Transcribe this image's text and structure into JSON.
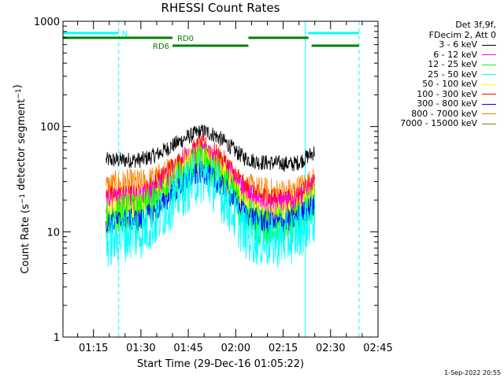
{
  "title": "RHESSI Count Rates",
  "legend": {
    "header": [
      "Det 3f,9f,",
      "FDecim 2, Att 0"
    ],
    "entries": [
      {
        "label": "3 - 6 keV",
        "color": "#000000"
      },
      {
        "label": "6 - 12 keV",
        "color": "#ff00ff"
      },
      {
        "label": "12 - 25 keV",
        "color": "#00ff00"
      },
      {
        "label": "25 - 50 keV",
        "color": "#00ffff"
      },
      {
        "label": "50 - 100 keV",
        "color": "#ffff00"
      },
      {
        "label": "100 - 300 keV",
        "color": "#ff0000"
      },
      {
        "label": "300 - 800 keV",
        "color": "#0000ff"
      },
      {
        "label": "800 - 7000 keV",
        "color": "#ff8000"
      },
      {
        "label": "7000 - 15000 keV",
        "color": "#808000"
      }
    ]
  },
  "footer": "1-Sep-2022 20:55",
  "chart_data": {
    "type": "line",
    "title": "RHESSI Count Rates",
    "xlabel": "Start Time (29-Dec-16 01:05:22)",
    "ylabel": "Count Rate (s⁻¹ detector segment⁻¹)",
    "x_axis": {
      "start": "01:05:22",
      "end": "02:45",
      "ticks": [
        "01:15",
        "01:30",
        "01:45",
        "02:00",
        "02:15",
        "02:30",
        "02:45"
      ]
    },
    "y_axis": {
      "scale": "log",
      "ylim": [
        1,
        1000
      ],
      "ticks": [
        "1",
        "10",
        "100",
        "1000"
      ]
    },
    "data_start": "01:19",
    "data_end": "02:25",
    "series": [
      {
        "name": "3 - 6 keV",
        "color": "#000000",
        "noise": 0.035,
        "points": [
          [
            "01:19",
            48
          ],
          [
            "01:25",
            48
          ],
          [
            "01:30",
            48
          ],
          [
            "01:35",
            54
          ],
          [
            "01:40",
            66
          ],
          [
            "01:45",
            80
          ],
          [
            "01:48",
            88
          ],
          [
            "01:50",
            90
          ],
          [
            "01:53",
            84
          ],
          [
            "01:57",
            70
          ],
          [
            "02:00",
            58
          ],
          [
            "02:03",
            50
          ],
          [
            "02:07",
            46
          ],
          [
            "02:12",
            45
          ],
          [
            "02:18",
            44
          ],
          [
            "02:20",
            46
          ],
          [
            "02:22",
            50
          ],
          [
            "02:25",
            58
          ]
        ]
      },
      {
        "name": "800 - 7000 keV",
        "color": "#ff8000",
        "noise": 0.07,
        "points": [
          [
            "01:19",
            26
          ],
          [
            "01:25",
            28
          ],
          [
            "01:30",
            28
          ],
          [
            "01:35",
            31
          ],
          [
            "01:40",
            38
          ],
          [
            "01:45",
            46
          ],
          [
            "01:48",
            52
          ],
          [
            "01:50",
            52
          ],
          [
            "01:53",
            46
          ],
          [
            "01:57",
            38
          ],
          [
            "02:00",
            31
          ],
          [
            "02:03",
            26
          ],
          [
            "02:07",
            24
          ],
          [
            "02:12",
            23
          ],
          [
            "02:18",
            23
          ],
          [
            "02:20",
            25
          ],
          [
            "02:22",
            27
          ],
          [
            "02:25",
            29
          ]
        ]
      },
      {
        "name": "100 - 300 keV",
        "color": "#ff0000",
        "noise": 0.05,
        "points": [
          [
            "01:19",
            21
          ],
          [
            "01:25",
            22
          ],
          [
            "01:30",
            22
          ],
          [
            "01:35",
            29
          ],
          [
            "01:40",
            41
          ],
          [
            "01:45",
            54
          ],
          [
            "01:48",
            63
          ],
          [
            "01:50",
            65
          ],
          [
            "01:53",
            56
          ],
          [
            "01:57",
            44
          ],
          [
            "02:00",
            34
          ],
          [
            "02:03",
            26
          ],
          [
            "02:07",
            22
          ],
          [
            "02:12",
            20
          ],
          [
            "02:18",
            20
          ],
          [
            "02:20",
            22
          ],
          [
            "02:22",
            25
          ],
          [
            "02:25",
            28
          ]
        ]
      },
      {
        "name": "6 - 12 keV",
        "color": "#ff00ff",
        "noise": 0.06,
        "points": [
          [
            "01:19",
            19
          ],
          [
            "01:25",
            20
          ],
          [
            "01:30",
            20
          ],
          [
            "01:35",
            25
          ],
          [
            "01:40",
            35
          ],
          [
            "01:45",
            47
          ],
          [
            "01:48",
            55
          ],
          [
            "01:50",
            56
          ],
          [
            "01:53",
            48
          ],
          [
            "01:57",
            38
          ],
          [
            "02:00",
            29
          ],
          [
            "02:03",
            23
          ],
          [
            "02:07",
            19
          ],
          [
            "02:12",
            18
          ],
          [
            "02:18",
            18
          ],
          [
            "02:20",
            20
          ],
          [
            "02:22",
            22
          ],
          [
            "02:25",
            25
          ]
        ]
      },
      {
        "name": "50 - 100 keV",
        "color": "#ffff00",
        "noise": 0.08,
        "points": [
          [
            "01:19",
            14
          ],
          [
            "01:25",
            16
          ],
          [
            "01:30",
            16
          ],
          [
            "01:35",
            20
          ],
          [
            "01:40",
            29
          ],
          [
            "01:45",
            40
          ],
          [
            "01:48",
            46
          ],
          [
            "01:50",
            46
          ],
          [
            "01:53",
            40
          ],
          [
            "01:57",
            30
          ],
          [
            "02:00",
            22
          ],
          [
            "02:03",
            17
          ],
          [
            "02:07",
            14
          ],
          [
            "02:12",
            13
          ],
          [
            "02:18",
            14
          ],
          [
            "02:20",
            15
          ],
          [
            "02:22",
            18
          ],
          [
            "02:25",
            21
          ]
        ]
      },
      {
        "name": "12 - 25 keV",
        "color": "#00ff00",
        "noise": 0.09,
        "points": [
          [
            "01:19",
            13
          ],
          [
            "01:25",
            15
          ],
          [
            "01:30",
            15
          ],
          [
            "01:35",
            19
          ],
          [
            "01:40",
            27
          ],
          [
            "01:45",
            38
          ],
          [
            "01:48",
            44
          ],
          [
            "01:50",
            44
          ],
          [
            "01:53",
            38
          ],
          [
            "01:57",
            28
          ],
          [
            "02:00",
            20
          ],
          [
            "02:03",
            15
          ],
          [
            "02:07",
            12
          ],
          [
            "02:12",
            11
          ],
          [
            "02:18",
            12
          ],
          [
            "02:20",
            13
          ],
          [
            "02:22",
            16
          ],
          [
            "02:25",
            19
          ]
        ]
      },
      {
        "name": "300 - 800 keV",
        "color": "#0000ff",
        "noise": 0.05,
        "points": [
          [
            "01:19",
            12
          ],
          [
            "01:25",
            13
          ],
          [
            "01:30",
            13
          ],
          [
            "01:35",
            16
          ],
          [
            "01:40",
            23
          ],
          [
            "01:45",
            31
          ],
          [
            "01:48",
            36
          ],
          [
            "01:50",
            37
          ],
          [
            "01:53",
            32
          ],
          [
            "01:57",
            25
          ],
          [
            "02:00",
            19
          ],
          [
            "02:03",
            15
          ],
          [
            "02:07",
            13
          ],
          [
            "02:12",
            12
          ],
          [
            "02:18",
            13
          ],
          [
            "02:20",
            14
          ],
          [
            "02:22",
            16
          ],
          [
            "02:25",
            18
          ]
        ]
      },
      {
        "name": "25 - 50 keV",
        "color": "#00ffff",
        "noise": 0.12,
        "points": [
          [
            "01:19",
            8
          ],
          [
            "01:25",
            9.5
          ],
          [
            "01:30",
            10
          ],
          [
            "01:35",
            13
          ],
          [
            "01:40",
            20
          ],
          [
            "01:45",
            28
          ],
          [
            "01:48",
            33
          ],
          [
            "01:50",
            33
          ],
          [
            "01:53",
            28
          ],
          [
            "01:57",
            20
          ],
          [
            "02:00",
            14
          ],
          [
            "02:03",
            10
          ],
          [
            "02:07",
            8.5
          ],
          [
            "02:12",
            8
          ],
          [
            "02:18",
            9
          ],
          [
            "02:20",
            10
          ],
          [
            "02:22",
            12
          ],
          [
            "02:25",
            14
          ]
        ]
      }
    ],
    "markers": {
      "N": {
        "color": "#00ffff",
        "segments": [
          [
            "01:05:22",
            "01:23"
          ],
          [
            "02:23",
            "02:39"
          ]
        ]
      },
      "RD0": {
        "color": "#008000",
        "segments": [
          [
            "01:05:22",
            "01:40"
          ],
          [
            "02:04",
            "02:23"
          ]
        ]
      },
      "RD6": {
        "color": "#008000",
        "segments": [
          [
            "01:40",
            "02:04"
          ],
          [
            "02:24",
            "02:39"
          ]
        ]
      }
    },
    "vertical_lines": {
      "solid": [
        "01:05:22",
        "02:22"
      ],
      "dashed": [
        "01:23",
        "02:39"
      ]
    }
  }
}
